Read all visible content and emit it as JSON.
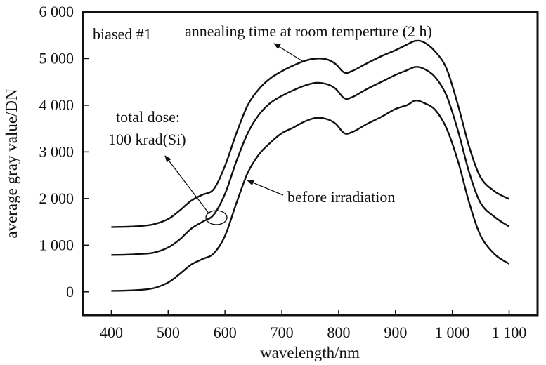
{
  "chart_data": {
    "type": "line",
    "xlabel": "wavelength/nm",
    "ylabel": "average gray value/DN",
    "xlim": [
      350,
      1150
    ],
    "ylim": [
      -500,
      6000
    ],
    "x_ticks": [
      400,
      500,
      600,
      700,
      800,
      900,
      1000,
      1100
    ],
    "x_tick_labels": [
      "400",
      "500",
      "600",
      "700",
      "800",
      "900",
      "1 000",
      "1 100"
    ],
    "y_ticks": [
      0,
      1000,
      2000,
      3000,
      4000,
      5000,
      6000
    ],
    "y_tick_labels": [
      "0",
      "1 000",
      "2 000",
      "3 000",
      "4 000",
      "5 000",
      "6 000"
    ],
    "grid": false,
    "series": [
      {
        "x": [
          400,
          425,
          450,
          475,
          500,
          520,
          540,
          560,
          580,
          600,
          620,
          640,
          660,
          680,
          700,
          720,
          740,
          760,
          780,
          795,
          810,
          825,
          850,
          875,
          900,
          920,
          935,
          950,
          970,
          990,
          1010,
          1030,
          1050,
          1075,
          1100
        ],
        "values": [
          20,
          25,
          40,
          80,
          200,
          380,
          580,
          700,
          820,
          1200,
          1900,
          2550,
          2950,
          3200,
          3400,
          3520,
          3650,
          3730,
          3700,
          3600,
          3400,
          3430,
          3600,
          3750,
          3920,
          4000,
          4100,
          4050,
          3900,
          3500,
          2800,
          1900,
          1200,
          800,
          600
        ]
      },
      {
        "x": [
          400,
          425,
          450,
          475,
          500,
          520,
          540,
          560,
          580,
          600,
          620,
          640,
          660,
          680,
          700,
          720,
          740,
          760,
          780,
          795,
          810,
          825,
          850,
          875,
          900,
          920,
          935,
          950,
          970,
          990,
          1010,
          1030,
          1050,
          1075,
          1100
        ],
        "values": [
          790,
          795,
          810,
          840,
          950,
          1120,
          1350,
          1500,
          1650,
          2100,
          2800,
          3400,
          3800,
          4050,
          4200,
          4320,
          4420,
          4480,
          4450,
          4350,
          4150,
          4180,
          4350,
          4500,
          4650,
          4750,
          4820,
          4780,
          4600,
          4200,
          3450,
          2550,
          1900,
          1600,
          1400
        ]
      },
      {
        "x": [
          400,
          425,
          450,
          475,
          500,
          520,
          540,
          560,
          580,
          600,
          620,
          640,
          660,
          680,
          700,
          720,
          740,
          760,
          780,
          795,
          810,
          825,
          850,
          875,
          900,
          920,
          935,
          950,
          970,
          990,
          1010,
          1030,
          1050,
          1075,
          1100
        ],
        "values": [
          1390,
          1395,
          1410,
          1450,
          1560,
          1740,
          1950,
          2080,
          2200,
          2700,
          3400,
          4000,
          4350,
          4580,
          4730,
          4850,
          4950,
          5000,
          4980,
          4880,
          4700,
          4740,
          4900,
          5050,
          5180,
          5300,
          5380,
          5350,
          5150,
          4780,
          4000,
          3100,
          2450,
          2150,
          1990
        ]
      }
    ],
    "annotations": [
      {
        "text": "biased #1",
        "position": "top-left"
      },
      {
        "text": "annealing time at room temperture (2 h)",
        "arrow_to": "upper curve near 740 nm"
      },
      {
        "text": "total dose:",
        "line": 1
      },
      {
        "text": "100 krad(Si)",
        "line": 2,
        "arrow_to": "ellipse around middle and upper curves near 590 nm"
      },
      {
        "text": "before irradiation",
        "arrow_to": "lower curve near 660 nm"
      }
    ]
  }
}
